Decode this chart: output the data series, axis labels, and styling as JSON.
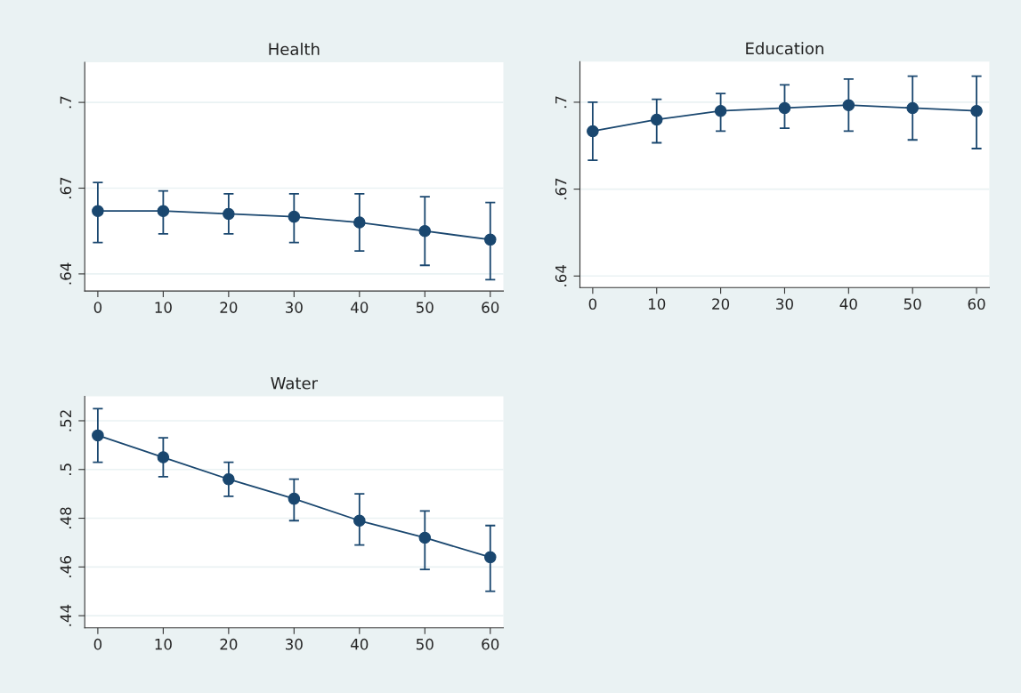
{
  "chart_data": [
    {
      "type": "line",
      "title": "Health",
      "x": [
        0,
        10,
        20,
        30,
        40,
        50,
        60
      ],
      "values": [
        0.662,
        0.662,
        0.661,
        0.66,
        0.658,
        0.655,
        0.652
      ],
      "errors": [
        [
          0.651,
          0.672
        ],
        [
          0.654,
          0.669
        ],
        [
          0.654,
          0.668
        ],
        [
          0.651,
          0.668
        ],
        [
          0.648,
          0.668
        ],
        [
          0.643,
          0.667
        ],
        [
          0.638,
          0.665
        ]
      ],
      "color": "#1a476f",
      "marker": "circle",
      "line_style": "solid",
      "grid": "y",
      "xlim": [
        -2,
        62
      ],
      "xticks": [
        0,
        10,
        20,
        30,
        40,
        50,
        60
      ],
      "ylim": [
        0.634,
        0.714
      ],
      "yticks": [
        {
          "value": 0.64,
          "label": ".64"
        },
        {
          "value": 0.67,
          "label": ".67"
        },
        {
          "value": 0.7,
          "label": ".7"
        }
      ]
    },
    {
      "type": "line",
      "title": "Education",
      "x": [
        0,
        10,
        20,
        30,
        40,
        50,
        60
      ],
      "values": [
        0.69,
        0.694,
        0.697,
        0.698,
        0.699,
        0.698,
        0.697
      ],
      "errors": [
        [
          0.68,
          0.7
        ],
        [
          0.686,
          0.701
        ],
        [
          0.69,
          0.703
        ],
        [
          0.691,
          0.706
        ],
        [
          0.69,
          0.708
        ],
        [
          0.687,
          0.709
        ],
        [
          0.684,
          0.709
        ]
      ],
      "color": "#1a476f",
      "marker": "circle",
      "line_style": "solid",
      "grid": "y",
      "xlim": [
        -2,
        62
      ],
      "xticks": [
        0,
        10,
        20,
        30,
        40,
        50,
        60
      ],
      "ylim": [
        0.636,
        0.714
      ],
      "yticks": [
        {
          "value": 0.64,
          "label": ".64"
        },
        {
          "value": 0.67,
          "label": ".67"
        },
        {
          "value": 0.7,
          "label": ".7"
        }
      ]
    },
    {
      "type": "line",
      "title": "Water",
      "x": [
        0,
        10,
        20,
        30,
        40,
        50,
        60
      ],
      "values": [
        0.514,
        0.505,
        0.496,
        0.488,
        0.479,
        0.472,
        0.464
      ],
      "errors": [
        [
          0.503,
          0.525
        ],
        [
          0.497,
          0.513
        ],
        [
          0.489,
          0.503
        ],
        [
          0.479,
          0.496
        ],
        [
          0.469,
          0.49
        ],
        [
          0.459,
          0.483
        ],
        [
          0.45,
          0.477
        ]
      ],
      "color": "#1a476f",
      "marker": "circle",
      "line_style": "solid",
      "grid": "y",
      "xlim": [
        -2,
        62
      ],
      "xticks": [
        0,
        10,
        20,
        30,
        40,
        50,
        60
      ],
      "ylim": [
        0.435,
        0.53
      ],
      "yticks": [
        {
          "value": 0.44,
          "label": ".44"
        },
        {
          "value": 0.46,
          "label": ".46"
        },
        {
          "value": 0.48,
          "label": ".48"
        },
        {
          "value": 0.5,
          "label": ".5"
        },
        {
          "value": 0.52,
          "label": ".52"
        }
      ]
    }
  ]
}
